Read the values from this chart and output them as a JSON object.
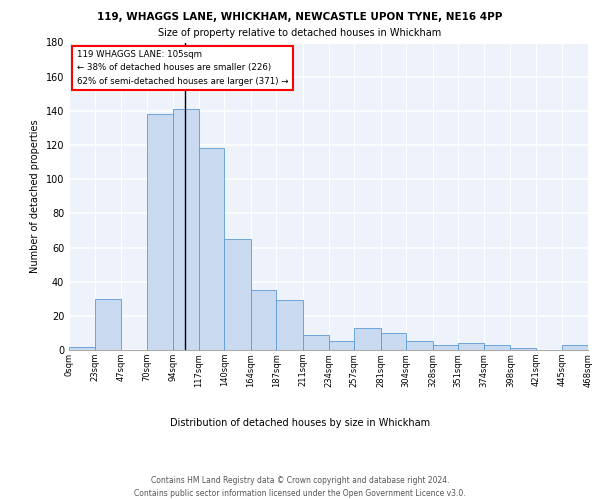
{
  "title_line1": "119, WHAGGS LANE, WHICKHAM, NEWCASTLE UPON TYNE, NE16 4PP",
  "title_line2": "Size of property relative to detached houses in Whickham",
  "xlabel": "Distribution of detached houses by size in Whickham",
  "ylabel": "Number of detached properties",
  "bin_labels": [
    "0sqm",
    "23sqm",
    "47sqm",
    "70sqm",
    "94sqm",
    "117sqm",
    "140sqm",
    "164sqm",
    "187sqm",
    "211sqm",
    "234sqm",
    "257sqm",
    "281sqm",
    "304sqm",
    "328sqm",
    "351sqm",
    "374sqm",
    "398sqm",
    "421sqm",
    "445sqm",
    "468sqm"
  ],
  "bar_values": [
    2,
    30,
    0,
    138,
    141,
    118,
    65,
    35,
    29,
    9,
    5,
    13,
    10,
    5,
    3,
    4,
    3,
    1,
    0,
    3
  ],
  "bar_color": "#c8d9f0",
  "bar_edge_color": "#5b9bd5",
  "ylim": [
    0,
    180
  ],
  "yticks": [
    0,
    20,
    40,
    60,
    80,
    100,
    120,
    140,
    160,
    180
  ],
  "annotation_box_text": "119 WHAGGS LANE: 105sqm\n← 38% of detached houses are smaller (226)\n62% of semi-detached houses are larger (371) →",
  "footer_text": "Contains HM Land Registry data © Crown copyright and database right 2024.\nContains public sector information licensed under the Open Government Licence v3.0.",
  "bin_edges": [
    0,
    23,
    47,
    70,
    94,
    117,
    140,
    164,
    187,
    211,
    234,
    257,
    281,
    304,
    328,
    351,
    374,
    398,
    421,
    445,
    468
  ],
  "vline_x": 105,
  "bg_color": "#edf2fb"
}
